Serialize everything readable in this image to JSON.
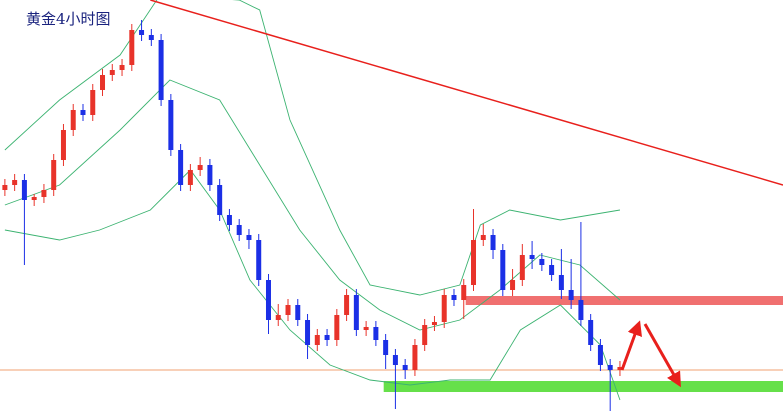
{
  "chart_data": {
    "type": "candlestick",
    "title": "黄金4小时图",
    "xlim": [
      -0.5,
      79.7
    ],
    "ylim": [
      0,
      419
    ],
    "up_color": "#e8332a",
    "down_color": "#1b2fe6",
    "open": [
      229,
      234,
      239,
      219,
      222,
      229,
      259,
      289,
      309,
      304,
      329,
      344,
      349,
      354,
      389,
      384,
      379,
      319,
      269,
      234,
      249,
      254,
      234,
      204,
      194,
      184,
      179,
      139,
      99,
      104,
      114,
      99,
      74,
      84,
      79,
      104,
      124,
      89,
      92,
      79,
      64,
      54,
      49,
      74,
      94,
      97,
      124,
      119,
      134,
      179,
      184,
      169,
      129,
      139,
      164,
      160,
      154,
      144,
      129,
      119,
      99,
      74,
      54,
      49
    ],
    "close": [
      234,
      239,
      219,
      222,
      229,
      259,
      289,
      309,
      304,
      329,
      344,
      349,
      354,
      389,
      384,
      379,
      319,
      269,
      234,
      249,
      254,
      234,
      204,
      194,
      184,
      179,
      139,
      99,
      104,
      114,
      99,
      74,
      84,
      79,
      104,
      124,
      89,
      92,
      79,
      64,
      54,
      49,
      74,
      94,
      97,
      124,
      119,
      134,
      179,
      184,
      169,
      129,
      139,
      164,
      160,
      154,
      144,
      129,
      119,
      99,
      74,
      54,
      49,
      52
    ],
    "high": [
      240,
      245,
      245,
      225,
      235,
      265,
      295,
      315,
      315,
      335,
      350,
      355,
      360,
      395,
      399,
      390,
      385,
      325,
      275,
      255,
      262,
      260,
      240,
      210,
      200,
      190,
      185,
      145,
      115,
      120,
      120,
      105,
      90,
      90,
      110,
      130,
      130,
      98,
      98,
      85,
      70,
      60,
      80,
      100,
      103,
      130,
      130,
      140,
      210,
      195,
      190,
      175,
      150,
      175,
      178,
      166,
      160,
      170,
      160,
      197,
      105,
      80,
      60,
      58
    ],
    "low": [
      223,
      228,
      154,
      213,
      216,
      223,
      253,
      283,
      298,
      298,
      323,
      338,
      343,
      348,
      378,
      373,
      313,
      263,
      228,
      228,
      243,
      228,
      198,
      188,
      178,
      170,
      133,
      85,
      93,
      98,
      93,
      60,
      68,
      73,
      73,
      98,
      83,
      83,
      73,
      50,
      10,
      40,
      43,
      68,
      88,
      91,
      113,
      100,
      128,
      173,
      160,
      123,
      123,
      133,
      150,
      148,
      138,
      120,
      110,
      93,
      68,
      48,
      8,
      43
    ],
    "bollinger": {
      "color": "#3cb371",
      "upper": {
        "x": [
          0,
          5.6,
          11.8,
          15.9,
          24,
          26.1,
          29.2,
          34.3,
          37.4,
          42.5,
          46.6,
          48.7,
          51.7,
          56.9,
          63
        ],
        "values": [
          269,
          319,
          364,
          424,
          419,
          409,
          299,
          189,
          134,
          124,
          134,
          194,
          209,
          199,
          209
        ]
      },
      "middle": {
        "x": [
          0,
          5.6,
          11.8,
          16.9,
          22,
          26.1,
          30.2,
          34.3,
          38.4,
          42.5,
          46.6,
          50.7,
          54.8,
          58.9,
          63
        ],
        "values": [
          214,
          234,
          289,
          339,
          319,
          254,
          189,
          139,
          109,
          89,
          99,
          129,
          164,
          154,
          119
        ]
      },
      "lower": {
        "x": [
          0,
          5.6,
          9.7,
          14.9,
          19,
          22,
          25.1,
          29.2,
          33.3,
          37.4,
          41.5,
          45.6,
          49.7,
          52.8,
          56.9,
          61,
          63
        ],
        "values": [
          189,
          179,
          189,
          209,
          249,
          209,
          139,
          89,
          54,
          39,
          34,
          39,
          39,
          89,
          114,
          74,
          19
        ]
      }
    },
    "trendline": {
      "color": "#e8201c",
      "x": [
        14.9,
        79.7
      ],
      "values": [
        419,
        234
      ]
    },
    "resistance": {
      "color": "#f07070",
      "x_from": 47.2,
      "range": [
        114,
        123
      ]
    },
    "support": {
      "color": "#66e04a",
      "x_from": 38.8,
      "range": [
        27,
        38
      ]
    },
    "reference_line": {
      "color": "#f0a070",
      "value": 49
    }
  }
}
